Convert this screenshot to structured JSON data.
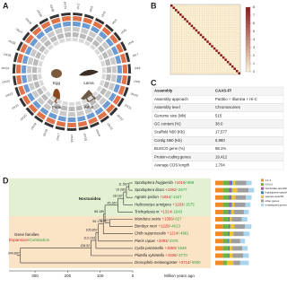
{
  "panel_a": {
    "label": "A",
    "chromosomes": [
      "chr1",
      "chr2",
      "chr3",
      "chr4",
      "chr5",
      "chr6",
      "chr7",
      "chr8",
      "chr9",
      "chr10",
      "chr11",
      "chr12",
      "chr13",
      "chr14",
      "chr15",
      "chr16",
      "chr17",
      "chr18",
      "chr19",
      "chr20",
      "chr21",
      "chr22",
      "chr23",
      "chr24",
      "chr25",
      "chr26",
      "chr27",
      "chr28",
      "chr29",
      "chr30",
      "chr31"
    ],
    "stages": [
      "Egg",
      "Larva",
      "Pupa",
      "Adult"
    ]
  },
  "panel_b": {
    "label": "B",
    "diagonal": [
      8,
      8,
      8,
      8,
      8,
      8,
      8,
      8,
      8,
      8,
      8,
      8,
      8,
      8,
      8,
      8,
      8,
      8,
      8,
      8,
      8,
      8,
      8,
      8,
      8,
      8,
      8,
      8,
      8,
      8,
      8
    ],
    "colorbar_lim": [
      0,
      8
    ],
    "colorbar_ticks": [
      0,
      1,
      2,
      3,
      4,
      5,
      6,
      7,
      8
    ]
  },
  "panel_c": {
    "label": "C",
    "rows": [
      [
        "Assembly",
        "CAAS-Ff"
      ],
      [
        "Assembly approach",
        "PacBio + Illumina + Hi-C"
      ],
      [
        "Assembly level",
        "Chromosomes"
      ],
      [
        "Genome size (Mb)",
        "515"
      ],
      [
        "GC content (%)",
        "38.0"
      ],
      [
        "Scaffold N50 (Kb)",
        "17,577"
      ],
      [
        "Contig N50 (Kb)",
        "5,980"
      ],
      [
        "BUSCO gene (%)",
        "98.1%"
      ],
      [
        "Protein-coding genes",
        "19,412"
      ],
      [
        "Average CDS length",
        "1,704"
      ]
    ]
  },
  "panel_d": {
    "label": "D",
    "legend_title": "Gene families",
    "legend_expansion": "Expansion",
    "legend_contraction": "/Contraction",
    "clade_label": "Noctuoidea",
    "x_label": "Million years ago",
    "xlim": [
      380,
      0
    ],
    "xticks": [
      300,
      200,
      100,
      0
    ],
    "species": [
      {
        "name": "Spodoptera frugiperda",
        "gain": "+1016",
        "loss": "/-868"
      },
      {
        "name": "Spodoptera litura",
        "gain": "+1052",
        "loss": "/-2677"
      },
      {
        "name": "Agrotis ipsilon",
        "gain": "+1914",
        "loss": "/-1427"
      },
      {
        "name": "Helicoverpa armigera",
        "gain": "+1203",
        "loss": "/-1575"
      },
      {
        "name": "Trichoplusia ni",
        "gain": "+1314",
        "loss": "/-1643"
      },
      {
        "name": "Manduca sexta",
        "gain": "+1356",
        "loss": "/-627"
      },
      {
        "name": "Bombyx mori",
        "gain": "+1228",
        "loss": "/-4613"
      },
      {
        "name": "Chilo suppressalis",
        "gain": "+1214",
        "loss": "/-4961"
      },
      {
        "name": "Pieris rapae",
        "gain": "+2093",
        "loss": "/-2476"
      },
      {
        "name": "Cydia pomonella",
        "gain": "+1559",
        "loss": "/-1548"
      },
      {
        "name": "Plutella xylostella",
        "gain": "+1536",
        "loss": "/-3770"
      },
      {
        "name": "Drosophila melanogaster",
        "gain": "+3713",
        "loss": "/-6000"
      }
    ],
    "node_ages": [
      11.567,
      19.283,
      28.187,
      45.367,
      70.467,
      85.189,
      90.178,
      105.852,
      113.103,
      128.52,
      344.897
    ],
    "bar_series": [
      {
        "name": "1:1:1",
        "color": "#f08a24",
        "values": [
          3600,
          3600,
          3600,
          3600,
          3600,
          3600,
          3600,
          3600,
          3600,
          3600,
          3600,
          3600
        ]
      },
      {
        "name": "N:N:N",
        "color": "#6db33f",
        "values": [
          2800,
          2700,
          2600,
          2700,
          2500,
          2500,
          2600,
          2400,
          2300,
          2500,
          2400,
          1800
        ]
      },
      {
        "name": "Noctuidae-specific",
        "color": "#9b59b6",
        "values": [
          900,
          850,
          800,
          850,
          700,
          0,
          0,
          0,
          0,
          0,
          0,
          0
        ]
      },
      {
        "name": "lepidoptera-specific",
        "color": "#3b7dc4",
        "values": [
          600,
          600,
          600,
          600,
          500,
          700,
          700,
          650,
          600,
          650,
          600,
          0
        ]
      },
      {
        "name": "species-specific",
        "color": "#f2c12e",
        "values": [
          1500,
          2500,
          1800,
          1200,
          1300,
          900,
          2000,
          1800,
          800,
          1200,
          1500,
          3000
        ]
      },
      {
        "name": "other genes",
        "color": "#9e9e9e",
        "values": [
          5000,
          5200,
          4800,
          5000,
          4700,
          4600,
          4900,
          4700,
          4300,
          4600,
          4800,
          3200
        ]
      },
      {
        "name": "unassigned genes",
        "color": "#a8d4ee",
        "values": [
          2500,
          2600,
          2700,
          2400,
          2300,
          2600,
          3000,
          2800,
          2200,
          2500,
          2700,
          4000
        ]
      }
    ],
    "bar_lim": [
      0,
      20000
    ]
  }
}
